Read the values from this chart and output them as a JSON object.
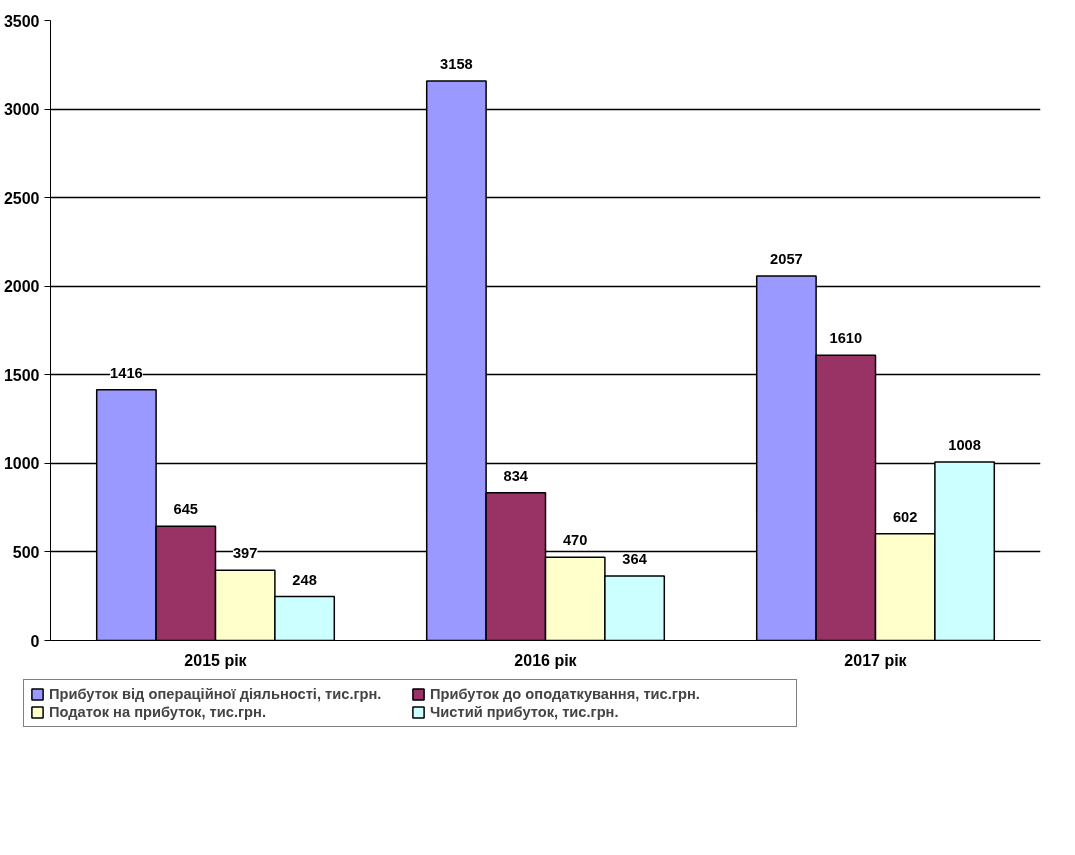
{
  "chart_data": {
    "type": "bar",
    "categories": [
      "2015 рік",
      "2016 рік",
      "2017 рік"
    ],
    "series": [
      {
        "name": "Прибуток від операційної діяльності, тис.грн.",
        "color": "#9999ff",
        "values": [
          1416,
          3158,
          2057
        ]
      },
      {
        "name": "Прибуток до оподаткування, тис.грн.",
        "color": "#993366",
        "values": [
          645,
          834,
          1610
        ]
      },
      {
        "name": "Податок на прибуток, тис.грн.",
        "color": "#ffffcc",
        "values": [
          397,
          470,
          602
        ]
      },
      {
        "name": "Чистий прибуток, тис.грн.",
        "color": "#ccffff",
        "values": [
          248,
          364,
          1008
        ]
      }
    ],
    "ylim": [
      0,
      3500
    ],
    "yticks": [
      0,
      500,
      1000,
      1500,
      2000,
      2500,
      3000,
      3500
    ],
    "grid": "y",
    "legend": "bottom",
    "data_labels": true
  }
}
